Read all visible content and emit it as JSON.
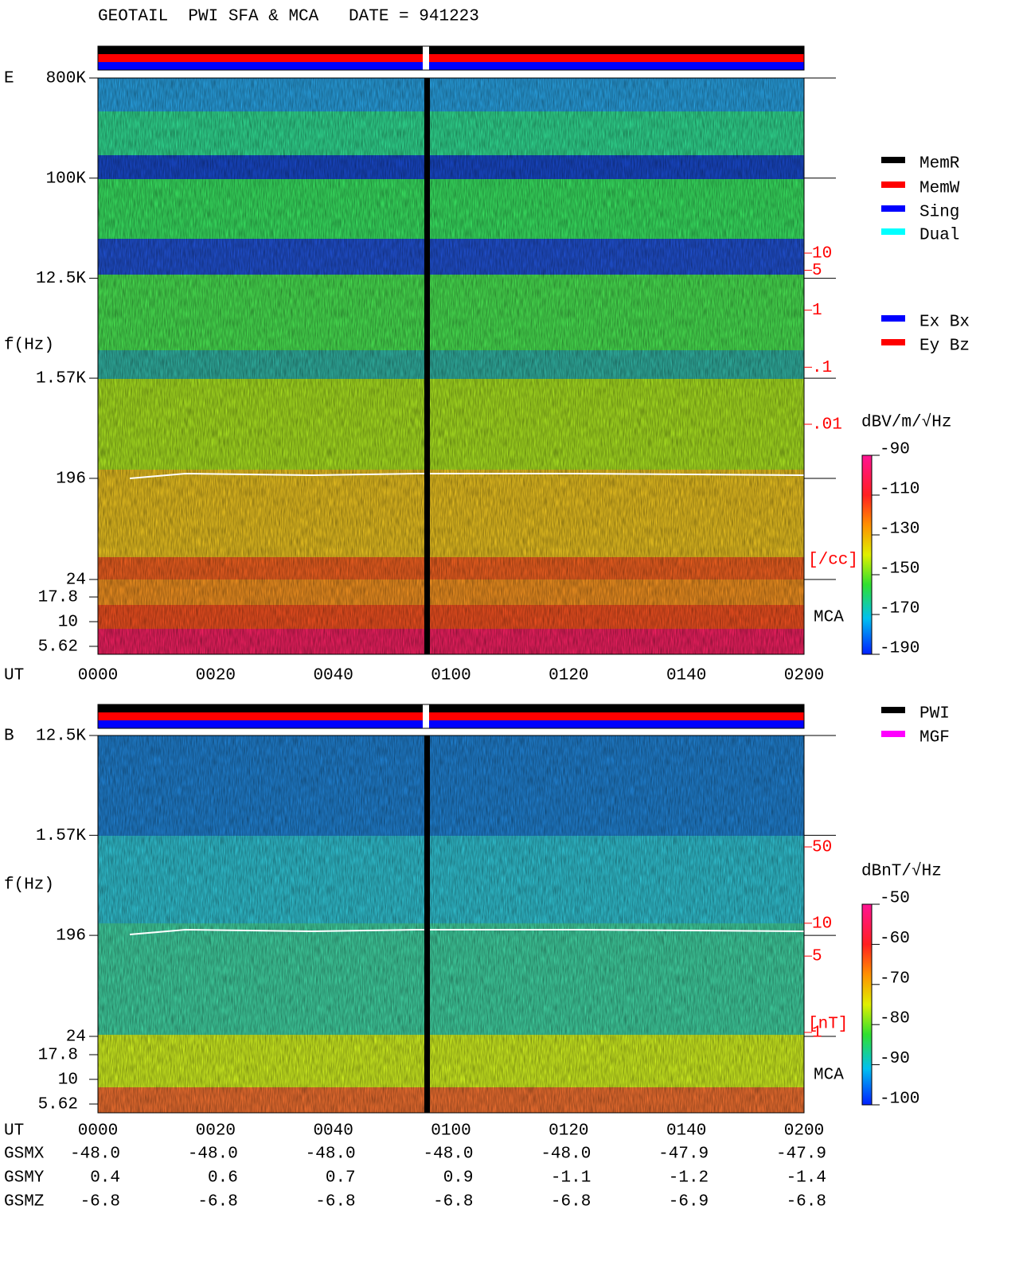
{
  "title": "GEOTAIL  PWI SFA & MCA   DATE = 941223",
  "chart_data": [
    {
      "type": "spectrogram",
      "component": "E",
      "ylabel": "f(Hz)",
      "xlabel": "UT",
      "yscale": "log",
      "ylim": [
        24,
        800000
      ],
      "yticks": [
        {
          "value": 800000,
          "label": "800K"
        },
        {
          "value": 100000,
          "label": "100K"
        },
        {
          "value": 12500,
          "label": "12.5K"
        },
        {
          "value": 1570,
          "label": "1.57K"
        },
        196,
        24
      ],
      "mca_yticks": [
        17.8,
        10,
        5.62
      ],
      "mca_label": "MCA",
      "xticks": [
        "0000",
        "0020",
        "0040",
        "0100",
        "0120",
        "0140",
        "0200"
      ],
      "y2scale": "log",
      "y2lim": [
        0.01,
        10
      ],
      "y2ticks": [
        10,
        5,
        1,
        {
          "value": 0.1,
          "label": ".1"
        },
        {
          "value": 0.01,
          "label": ".01"
        }
      ],
      "y2label": "[/cc]",
      "colorbar": {
        "label": "dBV/m/√Hz",
        "lim": [
          -190,
          -90
        ],
        "ticks": [
          -90,
          -110,
          -130,
          -150,
          -170,
          -190
        ]
      },
      "status_legend": [
        {
          "name": "MemR",
          "color": "#000000"
        },
        {
          "name": "MemW",
          "color": "#ff0000"
        },
        {
          "name": "Sing",
          "color": "#0000ff"
        },
        {
          "name": "Dual",
          "color": "#00ffff"
        }
      ],
      "channel_legend": [
        {
          "name": "Ex Bx",
          "color": "#0000ff"
        },
        {
          "name": "Ey Bz",
          "color": "#ff0000"
        }
      ]
    },
    {
      "type": "spectrogram",
      "component": "B",
      "ylabel": "f(Hz)",
      "xlabel": "UT",
      "yscale": "log",
      "ylim": [
        24,
        12500
      ],
      "yticks": [
        {
          "value": 12500,
          "label": "12.5K"
        },
        {
          "value": 1570,
          "label": "1.57K"
        },
        196,
        24
      ],
      "mca_yticks": [
        17.8,
        10,
        5.62
      ],
      "mca_label": "MCA",
      "xticks": [
        "0000",
        "0020",
        "0040",
        "0100",
        "0120",
        "0140",
        "0200"
      ],
      "y2scale": "log",
      "y2lim": [
        1,
        50
      ],
      "y2ticks": [
        50,
        10,
        5,
        1
      ],
      "y2label": "[nT]",
      "colorbar": {
        "label": "dBnT/√Hz",
        "lim": [
          -100,
          -50
        ],
        "ticks": [
          -50,
          -60,
          -70,
          -80,
          -90,
          -100
        ]
      },
      "status_legend": [
        {
          "name": "PWI",
          "color": "#000000"
        },
        {
          "name": "MGF",
          "color": "#ff00ff"
        }
      ]
    }
  ],
  "orbit": {
    "labels": [
      "GSMX",
      "GSMY",
      "GSMZ"
    ],
    "rows": [
      [
        "-48.0",
        "-48.0",
        "-48.0",
        "-48.0",
        "-48.0",
        "-47.9",
        "-47.9"
      ],
      [
        "0.4",
        "0.6",
        "0.7",
        "0.9",
        "-1.1",
        "-1.2",
        "-1.4"
      ],
      [
        "-6.8",
        "-6.8",
        "-6.8",
        "-6.8",
        "-6.8",
        "-6.9",
        "-6.8"
      ]
    ]
  }
}
